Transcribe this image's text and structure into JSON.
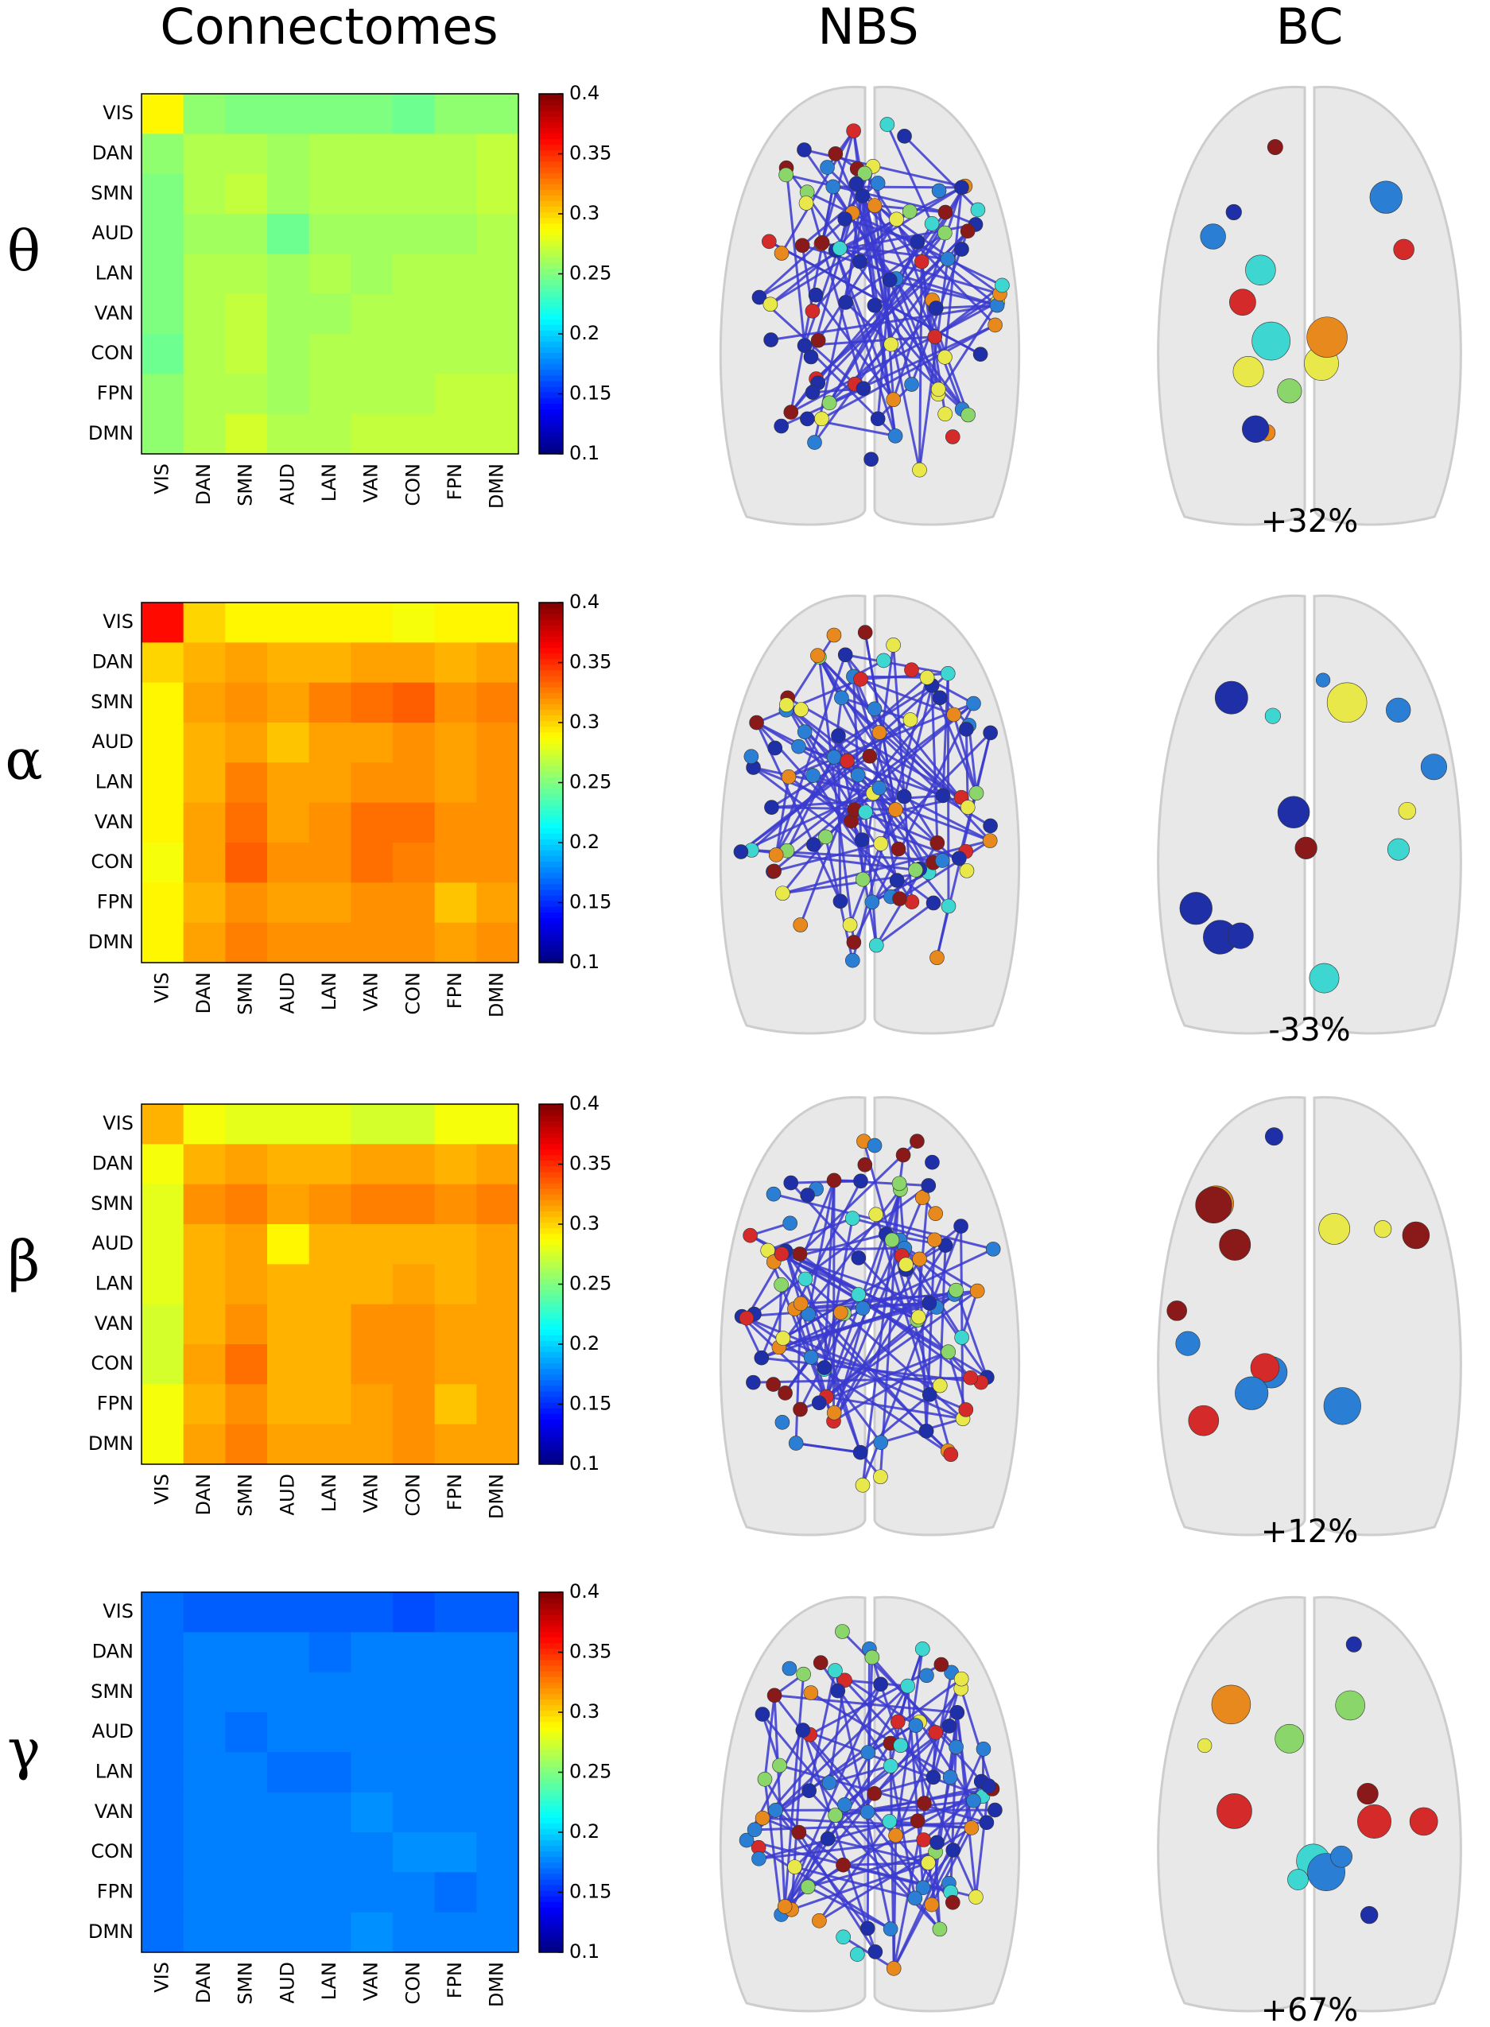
{
  "headers": [
    "Connectomes",
    "NBS",
    "BC"
  ],
  "chart_data": [
    {
      "type": "heatmap",
      "label": "θ",
      "annotation": "+32%",
      "colormap": "jet",
      "categories": [
        "VIS",
        "DAN",
        "SMN",
        "AUD",
        "LAN",
        "VAN",
        "CON",
        "FPN",
        "DMN"
      ],
      "values": [
        [
          0.29,
          0.255,
          0.25,
          0.25,
          0.25,
          0.25,
          0.245,
          0.255,
          0.255
        ],
        [
          0.255,
          0.265,
          0.265,
          0.26,
          0.265,
          0.265,
          0.265,
          0.265,
          0.27
        ],
        [
          0.25,
          0.265,
          0.27,
          0.26,
          0.265,
          0.265,
          0.265,
          0.265,
          0.27
        ],
        [
          0.25,
          0.26,
          0.26,
          0.245,
          0.26,
          0.26,
          0.26,
          0.26,
          0.265
        ],
        [
          0.25,
          0.265,
          0.265,
          0.26,
          0.265,
          0.26,
          0.265,
          0.265,
          0.265
        ],
        [
          0.25,
          0.265,
          0.27,
          0.26,
          0.26,
          0.265,
          0.265,
          0.265,
          0.265
        ],
        [
          0.245,
          0.265,
          0.27,
          0.26,
          0.265,
          0.265,
          0.265,
          0.265,
          0.265
        ],
        [
          0.255,
          0.265,
          0.265,
          0.26,
          0.265,
          0.265,
          0.265,
          0.27,
          0.27
        ],
        [
          0.255,
          0.265,
          0.275,
          0.265,
          0.265,
          0.27,
          0.27,
          0.27,
          0.27
        ]
      ],
      "clim": [
        0.1,
        0.4
      ],
      "cticks": [
        0.1,
        0.15,
        0.2,
        0.25,
        0.3,
        0.35,
        0.4
      ]
    },
    {
      "type": "heatmap",
      "label": "α",
      "annotation": "-33%",
      "colormap": "jet",
      "categories": [
        "VIS",
        "DAN",
        "SMN",
        "AUD",
        "LAN",
        "VAN",
        "CON",
        "FPN",
        "DMN"
      ],
      "values": [
        [
          0.36,
          0.3,
          0.29,
          0.29,
          0.29,
          0.29,
          0.285,
          0.29,
          0.29
        ],
        [
          0.3,
          0.31,
          0.315,
          0.31,
          0.31,
          0.315,
          0.315,
          0.31,
          0.315
        ],
        [
          0.29,
          0.315,
          0.32,
          0.315,
          0.325,
          0.33,
          0.335,
          0.32,
          0.325
        ],
        [
          0.29,
          0.31,
          0.315,
          0.305,
          0.315,
          0.315,
          0.32,
          0.315,
          0.32
        ],
        [
          0.29,
          0.31,
          0.325,
          0.315,
          0.315,
          0.32,
          0.32,
          0.315,
          0.32
        ],
        [
          0.29,
          0.315,
          0.33,
          0.315,
          0.32,
          0.33,
          0.33,
          0.32,
          0.32
        ],
        [
          0.285,
          0.315,
          0.335,
          0.32,
          0.32,
          0.33,
          0.325,
          0.32,
          0.32
        ],
        [
          0.29,
          0.31,
          0.32,
          0.315,
          0.315,
          0.32,
          0.32,
          0.305,
          0.315
        ],
        [
          0.29,
          0.315,
          0.325,
          0.32,
          0.32,
          0.32,
          0.32,
          0.315,
          0.32
        ]
      ],
      "clim": [
        0.1,
        0.4
      ],
      "cticks": [
        0.1,
        0.15,
        0.2,
        0.25,
        0.3,
        0.35,
        0.4
      ]
    },
    {
      "type": "heatmap",
      "label": "β",
      "annotation": "+12%",
      "colormap": "jet",
      "categories": [
        "VIS",
        "DAN",
        "SMN",
        "AUD",
        "LAN",
        "VAN",
        "CON",
        "FPN",
        "DMN"
      ],
      "values": [
        [
          0.31,
          0.285,
          0.28,
          0.28,
          0.28,
          0.275,
          0.275,
          0.285,
          0.285
        ],
        [
          0.285,
          0.31,
          0.315,
          0.31,
          0.31,
          0.315,
          0.315,
          0.31,
          0.315
        ],
        [
          0.28,
          0.32,
          0.325,
          0.315,
          0.32,
          0.325,
          0.325,
          0.32,
          0.325
        ],
        [
          0.28,
          0.31,
          0.315,
          0.29,
          0.31,
          0.31,
          0.31,
          0.31,
          0.315
        ],
        [
          0.28,
          0.31,
          0.315,
          0.31,
          0.31,
          0.31,
          0.315,
          0.31,
          0.315
        ],
        [
          0.275,
          0.31,
          0.32,
          0.31,
          0.31,
          0.32,
          0.32,
          0.315,
          0.315
        ],
        [
          0.275,
          0.315,
          0.33,
          0.31,
          0.31,
          0.32,
          0.32,
          0.315,
          0.315
        ],
        [
          0.285,
          0.31,
          0.32,
          0.31,
          0.31,
          0.315,
          0.32,
          0.305,
          0.315
        ],
        [
          0.285,
          0.315,
          0.325,
          0.315,
          0.315,
          0.315,
          0.32,
          0.315,
          0.315
        ]
      ],
      "clim": [
        0.1,
        0.4
      ],
      "cticks": [
        0.1,
        0.15,
        0.2,
        0.25,
        0.3,
        0.35,
        0.4
      ]
    },
    {
      "type": "heatmap",
      "label": "γ",
      "annotation": "+67%",
      "colormap": "jet",
      "categories": [
        "VIS",
        "DAN",
        "SMN",
        "AUD",
        "LAN",
        "VAN",
        "CON",
        "FPN",
        "DMN"
      ],
      "values": [
        [
          0.17,
          0.165,
          0.165,
          0.165,
          0.165,
          0.165,
          0.16,
          0.165,
          0.165
        ],
        [
          0.17,
          0.175,
          0.175,
          0.175,
          0.17,
          0.175,
          0.175,
          0.175,
          0.175
        ],
        [
          0.17,
          0.175,
          0.175,
          0.175,
          0.175,
          0.175,
          0.175,
          0.175,
          0.175
        ],
        [
          0.17,
          0.175,
          0.17,
          0.175,
          0.175,
          0.175,
          0.175,
          0.175,
          0.175
        ],
        [
          0.17,
          0.175,
          0.175,
          0.17,
          0.17,
          0.175,
          0.175,
          0.175,
          0.175
        ],
        [
          0.17,
          0.175,
          0.175,
          0.175,
          0.175,
          0.18,
          0.175,
          0.175,
          0.175
        ],
        [
          0.17,
          0.175,
          0.175,
          0.175,
          0.175,
          0.175,
          0.18,
          0.18,
          0.175
        ],
        [
          0.17,
          0.175,
          0.175,
          0.175,
          0.175,
          0.175,
          0.175,
          0.17,
          0.175
        ],
        [
          0.17,
          0.175,
          0.175,
          0.175,
          0.175,
          0.18,
          0.175,
          0.175,
          0.175
        ]
      ],
      "clim": [
        0.1,
        0.4
      ],
      "cticks": [
        0.1,
        0.15,
        0.2,
        0.25,
        0.3,
        0.35,
        0.4
      ]
    }
  ]
}
